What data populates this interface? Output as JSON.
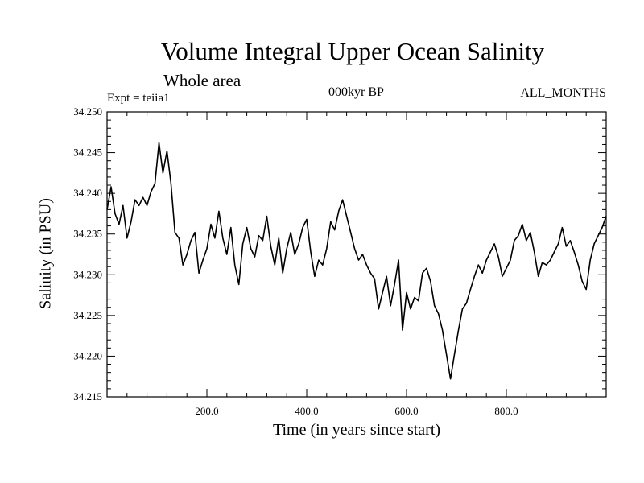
{
  "header": {
    "title": "Volume Integral Upper Ocean Salinity",
    "subtitle": "Whole area",
    "experiment": "Expt = teiia1",
    "period": "000kyr BP",
    "months": "ALL_MONTHS"
  },
  "chart_data": {
    "type": "line",
    "title": "Volume Integral Upper Ocean Salinity",
    "xlabel": "Time (in years since start)",
    "ylabel": "Salinity (in PSU)",
    "xlim": [
      0,
      1000
    ],
    "ylim": [
      34.215,
      34.25
    ],
    "x_ticks": [
      200,
      400,
      600,
      800
    ],
    "x_tick_labels": [
      "200.0",
      "400.0",
      "600.0",
      "800.0"
    ],
    "y_ticks": [
      34.215,
      34.22,
      34.225,
      34.23,
      34.235,
      34.24,
      34.245,
      34.25
    ],
    "y_tick_labels": [
      "34.215",
      "34.220",
      "34.225",
      "34.230",
      "34.235",
      "34.240",
      "34.245",
      "34.250"
    ],
    "grid": false,
    "series": [
      {
        "color": "#000000",
        "x": [
          0,
          8,
          16,
          24,
          32,
          40,
          48,
          56,
          64,
          72,
          80,
          88,
          96,
          104,
          112,
          120,
          128,
          136,
          144,
          152,
          160,
          168,
          176,
          184,
          192,
          200,
          208,
          216,
          224,
          232,
          240,
          248,
          256,
          264,
          272,
          280,
          288,
          296,
          304,
          312,
          320,
          328,
          336,
          344,
          352,
          360,
          368,
          376,
          384,
          392,
          400,
          408,
          416,
          424,
          432,
          440,
          448,
          456,
          464,
          472,
          480,
          488,
          496,
          504,
          512,
          520,
          528,
          536,
          544,
          552,
          560,
          568,
          576,
          584,
          592,
          600,
          608,
          616,
          624,
          632,
          640,
          648,
          656,
          664,
          672,
          680,
          688,
          696,
          704,
          712,
          720,
          728,
          736,
          744,
          752,
          760,
          768,
          776,
          784,
          792,
          800,
          808,
          816,
          824,
          832,
          840,
          848,
          856,
          864,
          872,
          880,
          888,
          896,
          904,
          912,
          920,
          928,
          936,
          944,
          952,
          960,
          968,
          976,
          984,
          992,
          1000
        ],
        "y": [
          34.238,
          34.2408,
          34.2375,
          34.2362,
          34.2385,
          34.2345,
          34.2365,
          34.2392,
          34.2385,
          34.2395,
          34.2385,
          34.2402,
          34.2412,
          34.2462,
          34.2425,
          34.2452,
          34.2412,
          34.2352,
          34.2345,
          34.2312,
          34.2325,
          34.2342,
          34.2352,
          34.2302,
          34.2318,
          34.2332,
          34.2362,
          34.2345,
          34.2378,
          34.2345,
          34.2325,
          34.2358,
          34.2312,
          34.2288,
          34.2338,
          34.2358,
          34.2332,
          34.2322,
          34.2348,
          34.2342,
          34.2372,
          34.2335,
          34.2312,
          34.2345,
          34.2302,
          34.2332,
          34.2352,
          34.2325,
          34.2338,
          34.2358,
          34.2368,
          34.2328,
          34.2298,
          34.2318,
          34.2312,
          34.2332,
          34.2365,
          34.2355,
          34.2378,
          34.2392,
          34.2372,
          34.2352,
          34.2332,
          34.2318,
          34.2325,
          34.2312,
          34.2302,
          34.2295,
          34.2258,
          34.2278,
          34.2298,
          34.2262,
          34.2288,
          34.2318,
          34.2232,
          34.2278,
          34.2258,
          34.2272,
          34.2268,
          34.2302,
          34.2308,
          34.2292,
          34.2262,
          34.2252,
          34.2232,
          34.2202,
          34.2172,
          34.2202,
          34.2232,
          34.2258,
          34.2265,
          34.2282,
          34.2298,
          34.2312,
          34.2302,
          34.2318,
          34.2328,
          34.2338,
          34.2322,
          34.2298,
          34.2308,
          34.2318,
          34.2342,
          34.2348,
          34.2362,
          34.2342,
          34.2352,
          34.2328,
          34.2298,
          34.2315,
          34.2312,
          34.2318,
          34.2328,
          34.2338,
          34.2358,
          34.2335,
          34.2342,
          34.2328,
          34.2312,
          34.2292,
          34.2282,
          34.2318,
          34.2338,
          34.2348,
          34.2358,
          34.2372
        ]
      }
    ]
  }
}
